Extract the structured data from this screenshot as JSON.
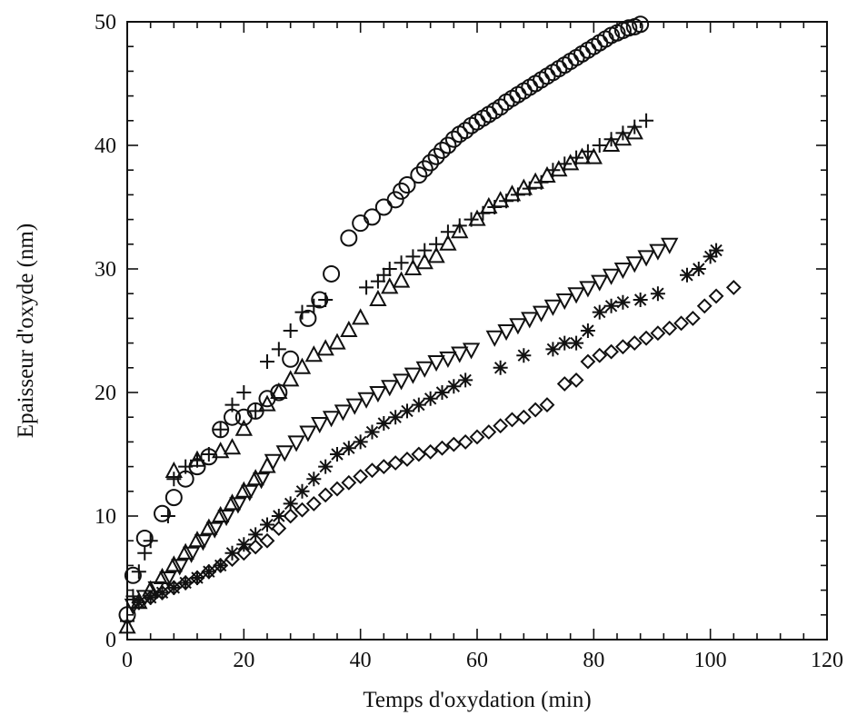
{
  "chart_data": {
    "type": "scatter",
    "xlabel": "Temps d'oxydation (min)",
    "ylabel": "Epaisseur d'oxyde (nm)",
    "xlim": [
      0,
      120
    ],
    "ylim": [
      0,
      50
    ],
    "xticks": [
      0,
      20,
      40,
      60,
      80,
      100,
      120
    ],
    "yticks": [
      0,
      10,
      20,
      30,
      40,
      50
    ],
    "x_minor_step": 4,
    "y_minor_step": 2,
    "grid": false,
    "legend": "none",
    "series": [
      {
        "marker": "circle",
        "points": [
          [
            0,
            2
          ],
          [
            1,
            5.2
          ],
          [
            3,
            8.2
          ],
          [
            6,
            10.2
          ],
          [
            8,
            11.5
          ],
          [
            10,
            13
          ],
          [
            12,
            14
          ],
          [
            14,
            14.8
          ],
          [
            16,
            17
          ],
          [
            18,
            18
          ],
          [
            20,
            18
          ],
          [
            22,
            18.5
          ],
          [
            24,
            19.5
          ],
          [
            26,
            20
          ],
          [
            28,
            22.7
          ],
          [
            31,
            26
          ],
          [
            33,
            27.5
          ],
          [
            35,
            29.6
          ],
          [
            38,
            32.5
          ],
          [
            40,
            33.7
          ],
          [
            42,
            34.2
          ],
          [
            44,
            35
          ],
          [
            46,
            35.6
          ],
          [
            47,
            36.3
          ],
          [
            48,
            36.8
          ],
          [
            50,
            37.6
          ],
          [
            51,
            38.1
          ],
          [
            52,
            38.6
          ],
          [
            53,
            39.1
          ],
          [
            54,
            39.6
          ],
          [
            55,
            40
          ],
          [
            56,
            40.5
          ],
          [
            57,
            40.9
          ],
          [
            58,
            41.2
          ],
          [
            59,
            41.6
          ],
          [
            60,
            41.9
          ],
          [
            61,
            42.2
          ],
          [
            62,
            42.5
          ],
          [
            63,
            42.8
          ],
          [
            64,
            43.1
          ],
          [
            65,
            43.5
          ],
          [
            66,
            43.8
          ],
          [
            67,
            44.1
          ],
          [
            68,
            44.4
          ],
          [
            69,
            44.7
          ],
          [
            70,
            45
          ],
          [
            71,
            45.3
          ],
          [
            72,
            45.6
          ],
          [
            73,
            45.9
          ],
          [
            74,
            46.2
          ],
          [
            75,
            46.5
          ],
          [
            76,
            46.8
          ],
          [
            77,
            47.1
          ],
          [
            78,
            47.4
          ],
          [
            79,
            47.7
          ],
          [
            80,
            48
          ],
          [
            81,
            48.3
          ],
          [
            82,
            48.6
          ],
          [
            83,
            48.9
          ],
          [
            84,
            49.1
          ],
          [
            85,
            49.3
          ],
          [
            86,
            49.5
          ],
          [
            87,
            49.6
          ],
          [
            88,
            49.8
          ]
        ]
      },
      {
        "marker": "plus",
        "points": [
          [
            0,
            1.5
          ],
          [
            1,
            3.5
          ],
          [
            2,
            5.5
          ],
          [
            3,
            7
          ],
          [
            4,
            8
          ],
          [
            7,
            10
          ],
          [
            8,
            13
          ],
          [
            10,
            14
          ],
          [
            12,
            14.5
          ],
          [
            14,
            15
          ],
          [
            16,
            17
          ],
          [
            18,
            19
          ],
          [
            20,
            20
          ],
          [
            22,
            18.5
          ],
          [
            24,
            22.5
          ],
          [
            26,
            23.5
          ],
          [
            28,
            25
          ],
          [
            30,
            26.5
          ],
          [
            32,
            27
          ],
          [
            34,
            27.5
          ],
          [
            41,
            28.5
          ],
          [
            43,
            29
          ],
          [
            44,
            29.5
          ],
          [
            45,
            30
          ],
          [
            47,
            30.5
          ],
          [
            49,
            31
          ],
          [
            51,
            31.5
          ],
          [
            53,
            32
          ],
          [
            55,
            33
          ],
          [
            57,
            33.5
          ],
          [
            59,
            34
          ],
          [
            61,
            34.5
          ],
          [
            63,
            35
          ],
          [
            65,
            35.5
          ],
          [
            67,
            36
          ],
          [
            69,
            36.5
          ],
          [
            71,
            37
          ],
          [
            73,
            38
          ],
          [
            75,
            38.5
          ],
          [
            77,
            39
          ],
          [
            79,
            39.5
          ],
          [
            81,
            40
          ],
          [
            83,
            40.5
          ],
          [
            85,
            41
          ],
          [
            87,
            41.5
          ],
          [
            89,
            42
          ]
        ]
      },
      {
        "marker": "triangle-up",
        "points": [
          [
            0,
            1
          ],
          [
            2,
            3
          ],
          [
            4,
            4
          ],
          [
            6,
            5
          ],
          [
            8,
            6
          ],
          [
            10,
            7
          ],
          [
            12,
            8
          ],
          [
            14,
            9
          ],
          [
            16,
            10
          ],
          [
            18,
            11
          ],
          [
            20,
            12
          ],
          [
            22,
            13
          ],
          [
            24,
            14
          ],
          [
            8,
            13.6
          ],
          [
            12,
            14.5
          ],
          [
            16,
            15.2
          ],
          [
            18,
            15.5
          ],
          [
            20,
            17
          ],
          [
            24,
            19
          ],
          [
            26,
            20
          ],
          [
            28,
            21
          ],
          [
            30,
            22
          ],
          [
            32,
            23
          ],
          [
            34,
            23.5
          ],
          [
            36,
            24
          ],
          [
            38,
            25
          ],
          [
            40,
            26
          ],
          [
            43,
            27.5
          ],
          [
            45,
            28.5
          ],
          [
            47,
            29
          ],
          [
            49,
            30
          ],
          [
            51,
            30.5
          ],
          [
            53,
            31
          ],
          [
            55,
            32
          ],
          [
            57,
            33
          ],
          [
            60,
            34
          ],
          [
            62,
            35
          ],
          [
            64,
            35.5
          ],
          [
            66,
            36
          ],
          [
            68,
            36.5
          ],
          [
            70,
            37
          ],
          [
            72,
            37.5
          ],
          [
            74,
            38
          ],
          [
            76,
            38.5
          ],
          [
            78,
            39
          ],
          [
            80,
            39
          ],
          [
            83,
            40
          ],
          [
            85,
            40.5
          ],
          [
            87,
            41
          ]
        ]
      },
      {
        "marker": "triangle-down",
        "points": [
          [
            1,
            2.8
          ],
          [
            3,
            3.5
          ],
          [
            5,
            4.2
          ],
          [
            7,
            5
          ],
          [
            9,
            6
          ],
          [
            11,
            7
          ],
          [
            13,
            8
          ],
          [
            15,
            9
          ],
          [
            17,
            10
          ],
          [
            19,
            11
          ],
          [
            21,
            12
          ],
          [
            23,
            13
          ],
          [
            25,
            14.5
          ],
          [
            27,
            15.2
          ],
          [
            29,
            16
          ],
          [
            31,
            16.8
          ],
          [
            33,
            17.5
          ],
          [
            35,
            18
          ],
          [
            37,
            18.5
          ],
          [
            39,
            19
          ],
          [
            41,
            19.5
          ],
          [
            43,
            20
          ],
          [
            45,
            20.5
          ],
          [
            47,
            21
          ],
          [
            49,
            21.5
          ],
          [
            51,
            22
          ],
          [
            53,
            22.5
          ],
          [
            55,
            22.8
          ],
          [
            57,
            23.2
          ],
          [
            59,
            23.5
          ],
          [
            63,
            24.5
          ],
          [
            65,
            25
          ],
          [
            67,
            25.5
          ],
          [
            69,
            26
          ],
          [
            71,
            26.5
          ],
          [
            73,
            27
          ],
          [
            75,
            27.5
          ],
          [
            77,
            28
          ],
          [
            79,
            28.5
          ],
          [
            81,
            29
          ],
          [
            83,
            29.5
          ],
          [
            85,
            30
          ],
          [
            87,
            30.5
          ],
          [
            89,
            31
          ],
          [
            91,
            31.5
          ],
          [
            93,
            32
          ]
        ]
      },
      {
        "marker": "asterisk",
        "points": [
          [
            2,
            3
          ],
          [
            4,
            3.4
          ],
          [
            6,
            3.8
          ],
          [
            8,
            4.2
          ],
          [
            10,
            4.6
          ],
          [
            12,
            5
          ],
          [
            14,
            5.5
          ],
          [
            16,
            6
          ],
          [
            18,
            7
          ],
          [
            20,
            7.7
          ],
          [
            22,
            8.5
          ],
          [
            24,
            9.3
          ],
          [
            26,
            10
          ],
          [
            28,
            11
          ],
          [
            30,
            12
          ],
          [
            32,
            13
          ],
          [
            34,
            14
          ],
          [
            36,
            15
          ],
          [
            38,
            15.5
          ],
          [
            40,
            16
          ],
          [
            42,
            16.8
          ],
          [
            44,
            17.5
          ],
          [
            46,
            18
          ],
          [
            48,
            18.5
          ],
          [
            50,
            19
          ],
          [
            52,
            19.5
          ],
          [
            54,
            20
          ],
          [
            56,
            20.5
          ],
          [
            58,
            21
          ],
          [
            64,
            22
          ],
          [
            68,
            23
          ],
          [
            73,
            23.5
          ],
          [
            75,
            24
          ],
          [
            77,
            24
          ],
          [
            79,
            25
          ],
          [
            81,
            26.5
          ],
          [
            83,
            27
          ],
          [
            85,
            27.3
          ],
          [
            88,
            27.5
          ],
          [
            91,
            28
          ],
          [
            96,
            29.5
          ],
          [
            98,
            30
          ],
          [
            100,
            31
          ],
          [
            101,
            31.5
          ]
        ]
      },
      {
        "marker": "diamond",
        "points": [
          [
            2,
            3
          ],
          [
            4,
            3.4
          ],
          [
            6,
            3.8
          ],
          [
            8,
            4.2
          ],
          [
            10,
            4.6
          ],
          [
            12,
            5
          ],
          [
            14,
            5.5
          ],
          [
            16,
            6
          ],
          [
            18,
            6.5
          ],
          [
            20,
            7
          ],
          [
            22,
            7.5
          ],
          [
            24,
            8
          ],
          [
            26,
            9
          ],
          [
            28,
            10
          ],
          [
            30,
            10.5
          ],
          [
            32,
            11
          ],
          [
            34,
            11.7
          ],
          [
            36,
            12.2
          ],
          [
            38,
            12.7
          ],
          [
            40,
            13.2
          ],
          [
            42,
            13.7
          ],
          [
            44,
            14
          ],
          [
            46,
            14.3
          ],
          [
            48,
            14.6
          ],
          [
            50,
            15
          ],
          [
            52,
            15.2
          ],
          [
            54,
            15.5
          ],
          [
            56,
            15.8
          ],
          [
            58,
            16
          ],
          [
            60,
            16.4
          ],
          [
            62,
            16.8
          ],
          [
            64,
            17.3
          ],
          [
            66,
            17.8
          ],
          [
            68,
            18
          ],
          [
            70,
            18.6
          ],
          [
            72,
            19
          ],
          [
            75,
            20.7
          ],
          [
            77,
            21
          ],
          [
            79,
            22.5
          ],
          [
            81,
            23
          ],
          [
            83,
            23.3
          ],
          [
            85,
            23.7
          ],
          [
            87,
            24
          ],
          [
            89,
            24.4
          ],
          [
            91,
            24.8
          ],
          [
            93,
            25.2
          ],
          [
            95,
            25.6
          ],
          [
            97,
            26
          ],
          [
            99,
            27
          ],
          [
            101,
            27.8
          ],
          [
            104,
            28.5
          ]
        ]
      }
    ]
  }
}
